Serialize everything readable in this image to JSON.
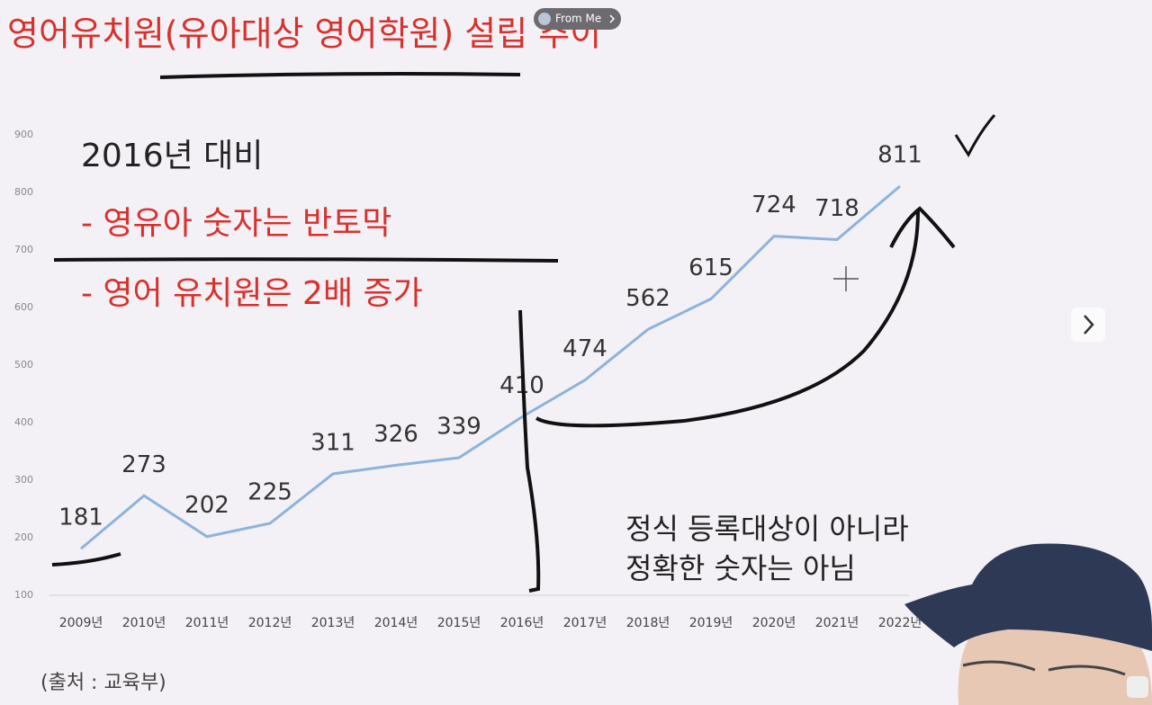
{
  "chart_data": {
    "type": "line",
    "title": "영어유치원(유아대상 영어학원) 설립 추이",
    "categories": [
      "2009년",
      "2010년",
      "2011년",
      "2012년",
      "2013년",
      "2014년",
      "2015년",
      "2016년",
      "2017년",
      "2018년",
      "2019년",
      "2020년",
      "2021년",
      "2022년"
    ],
    "values": [
      181,
      273,
      202,
      225,
      311,
      326,
      339,
      410,
      474,
      562,
      615,
      724,
      718,
      811
    ],
    "color": "#8db3dc",
    "ylim": [
      100,
      900
    ],
    "yticks": [
      100,
      200,
      300,
      400,
      500,
      600,
      700,
      800,
      900
    ],
    "notes": [
      "2016년 대비",
      "- 영유아 숫자는 반토막",
      "- 영어 유치원은 2배 증가",
      "정식 등록대상이 아니라",
      "정확한 숫자는 아님"
    ],
    "source": "(출처 : 교육부)"
  },
  "overlay": {
    "badge": "From Me"
  }
}
